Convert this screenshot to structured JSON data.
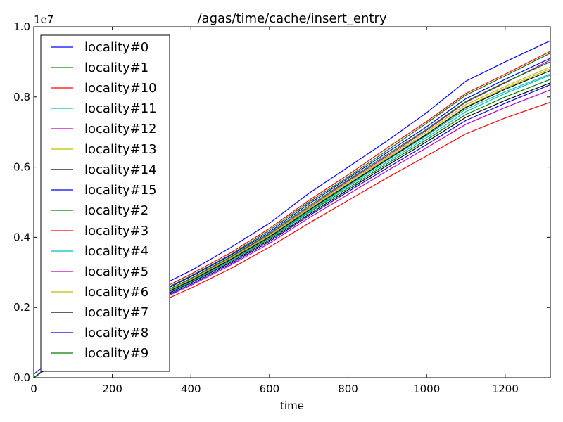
{
  "chart_data": {
    "type": "line",
    "title": "/agas/time/cache/insert_entry",
    "xlabel": "time",
    "ylabel": "",
    "y_scale_label": "1e7",
    "xlim": [
      0,
      1315
    ],
    "ylim": [
      0,
      1.0
    ],
    "x_ticks": [
      0,
      200,
      400,
      600,
      800,
      1000,
      1200
    ],
    "x_tick_labels": [
      "0",
      "200",
      "400",
      "600",
      "800",
      "1000",
      "1200"
    ],
    "y_ticks": [
      0,
      0.2,
      0.4,
      0.6,
      0.8,
      1.0
    ],
    "y_tick_labels": [
      "0.0",
      "0.2",
      "0.4",
      "0.6",
      "0.8",
      "1.0"
    ],
    "grid": false,
    "legend_position": "top-left",
    "series": [
      {
        "name": "locality#0",
        "color": "#0000ff",
        "x": [
          0,
          100,
          200,
          300,
          400,
          500,
          600,
          700,
          800,
          900,
          1000,
          1100,
          1200,
          1315
        ],
        "y": [
          0.01,
          0.1,
          0.19,
          0.25,
          0.305,
          0.37,
          0.44,
          0.525,
          0.6,
          0.675,
          0.755,
          0.845,
          0.9,
          0.96
        ]
      },
      {
        "name": "locality#1",
        "color": "#008000",
        "x": [
          0,
          100,
          200,
          300,
          400,
          500,
          600,
          700,
          800,
          900,
          1000,
          1100,
          1200,
          1315
        ],
        "y": [
          0.0,
          0.085,
          0.175,
          0.235,
          0.29,
          0.35,
          0.42,
          0.5,
          0.572,
          0.648,
          0.725,
          0.805,
          0.86,
          0.925
        ]
      },
      {
        "name": "locality#10",
        "color": "#ff0000",
        "x": [
          0,
          100,
          200,
          300,
          400,
          500,
          600,
          700,
          800,
          900,
          1000,
          1100,
          1200,
          1315
        ],
        "y": [
          0.0,
          0.088,
          0.178,
          0.24,
          0.295,
          0.355,
          0.425,
          0.505,
          0.578,
          0.655,
          0.73,
          0.81,
          0.865,
          0.93
        ]
      },
      {
        "name": "locality#11",
        "color": "#00bfbf",
        "x": [
          0,
          100,
          200,
          300,
          400,
          500,
          600,
          700,
          800,
          900,
          1000,
          1100,
          1200,
          1315
        ],
        "y": [
          0.0,
          0.082,
          0.165,
          0.222,
          0.275,
          0.335,
          0.4,
          0.475,
          0.548,
          0.62,
          0.69,
          0.765,
          0.815,
          0.865
        ]
      },
      {
        "name": "locality#12",
        "color": "#bf00bf",
        "x": [
          0,
          100,
          200,
          300,
          400,
          500,
          600,
          700,
          800,
          900,
          1000,
          1100,
          1200,
          1315
        ],
        "y": [
          0.0,
          0.083,
          0.17,
          0.228,
          0.282,
          0.342,
          0.408,
          0.485,
          0.56,
          0.632,
          0.705,
          0.785,
          0.84,
          0.905
        ]
      },
      {
        "name": "locality#13",
        "color": "#bfbf00",
        "x": [
          0,
          100,
          200,
          300,
          400,
          500,
          600,
          700,
          800,
          900,
          1000,
          1100,
          1200,
          1315
        ],
        "y": [
          0.0,
          0.082,
          0.166,
          0.224,
          0.277,
          0.338,
          0.403,
          0.48,
          0.552,
          0.625,
          0.695,
          0.772,
          0.825,
          0.88
        ]
      },
      {
        "name": "locality#14",
        "color": "#000000",
        "x": [
          0,
          100,
          200,
          300,
          400,
          500,
          600,
          700,
          800,
          900,
          1000,
          1100,
          1200,
          1315
        ],
        "y": [
          0.0,
          0.08,
          0.162,
          0.218,
          0.27,
          0.328,
          0.392,
          0.465,
          0.535,
          0.605,
          0.672,
          0.742,
          0.79,
          0.84
        ]
      },
      {
        "name": "locality#15",
        "color": "#0000ff",
        "x": [
          0,
          100,
          200,
          300,
          400,
          500,
          600,
          700,
          800,
          900,
          1000,
          1100,
          1200,
          1315
        ],
        "y": [
          0.0,
          0.085,
          0.172,
          0.232,
          0.288,
          0.348,
          0.415,
          0.495,
          0.568,
          0.642,
          0.715,
          0.795,
          0.85,
          0.91
        ]
      },
      {
        "name": "locality#2",
        "color": "#008000",
        "x": [
          0,
          100,
          200,
          300,
          400,
          500,
          600,
          700,
          800,
          900,
          1000,
          1100,
          1200,
          1315
        ],
        "y": [
          0.0,
          0.081,
          0.163,
          0.22,
          0.272,
          0.332,
          0.396,
          0.47,
          0.54,
          0.61,
          0.678,
          0.75,
          0.8,
          0.85
        ]
      },
      {
        "name": "locality#3",
        "color": "#ff0000",
        "x": [
          0,
          100,
          200,
          300,
          400,
          500,
          600,
          700,
          800,
          900,
          1000,
          1100,
          1200,
          1315
        ],
        "y": [
          0.0,
          0.075,
          0.152,
          0.205,
          0.255,
          0.31,
          0.372,
          0.44,
          0.505,
          0.57,
          0.632,
          0.695,
          0.74,
          0.785
        ]
      },
      {
        "name": "locality#4",
        "color": "#00bfbf",
        "x": [
          0,
          100,
          200,
          300,
          400,
          500,
          600,
          700,
          800,
          900,
          1000,
          1100,
          1200,
          1315
        ],
        "y": [
          0.0,
          0.081,
          0.164,
          0.22,
          0.273,
          0.333,
          0.398,
          0.472,
          0.545,
          0.615,
          0.684,
          0.758,
          0.81,
          0.862
        ]
      },
      {
        "name": "locality#5",
        "color": "#bf00bf",
        "x": [
          0,
          100,
          200,
          300,
          400,
          500,
          600,
          700,
          800,
          900,
          1000,
          1100,
          1200,
          1315
        ],
        "y": [
          0.0,
          0.078,
          0.158,
          0.212,
          0.263,
          0.32,
          0.383,
          0.455,
          0.522,
          0.59,
          0.655,
          0.722,
          0.77,
          0.82
        ]
      },
      {
        "name": "locality#6",
        "color": "#bfbf00",
        "x": [
          0,
          100,
          200,
          300,
          400,
          500,
          600,
          700,
          800,
          900,
          1000,
          1100,
          1200,
          1315
        ],
        "y": [
          0.0,
          0.082,
          0.167,
          0.225,
          0.279,
          0.34,
          0.406,
          0.483,
          0.556,
          0.628,
          0.7,
          0.778,
          0.83,
          0.885
        ]
      },
      {
        "name": "locality#7",
        "color": "#000000",
        "x": [
          0,
          100,
          200,
          300,
          400,
          500,
          600,
          700,
          800,
          900,
          1000,
          1100,
          1200,
          1315
        ],
        "y": [
          0.0,
          0.081,
          0.165,
          0.223,
          0.276,
          0.336,
          0.401,
          0.477,
          0.55,
          0.622,
          0.693,
          0.77,
          0.822,
          0.875
        ]
      },
      {
        "name": "locality#8",
        "color": "#0000ff",
        "x": [
          0,
          100,
          200,
          300,
          400,
          500,
          600,
          700,
          800,
          900,
          1000,
          1100,
          1200,
          1315
        ],
        "y": [
          0.0,
          0.079,
          0.16,
          0.215,
          0.266,
          0.324,
          0.388,
          0.461,
          0.53,
          0.598,
          0.664,
          0.733,
          0.782,
          0.835
        ]
      },
      {
        "name": "locality#9",
        "color": "#008000",
        "x": [
          0,
          100,
          200,
          300,
          400,
          500,
          600,
          700,
          800,
          900,
          1000,
          1100,
          1200,
          1315
        ],
        "y": [
          0.0,
          0.083,
          0.169,
          0.228,
          0.283,
          0.344,
          0.411,
          0.489,
          0.563,
          0.636,
          0.708,
          0.787,
          0.842,
          0.9
        ]
      }
    ]
  }
}
